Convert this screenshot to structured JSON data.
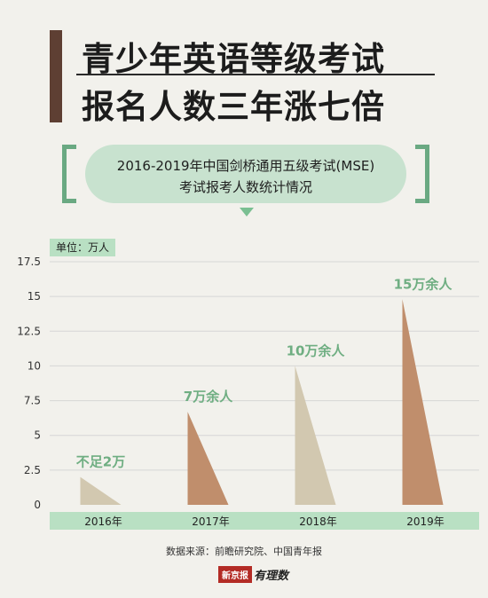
{
  "header": {
    "title_line1": "青少年英语等级考试",
    "title_line2": "报名人数三年涨七倍"
  },
  "subtitle": {
    "line1": "2016-2019年中国剑桥通用五级考试(MSE)",
    "line2": "考试报考人数统计情况"
  },
  "unit_label": "单位：万人",
  "source_text": "数据来源：前瞻研究院、中国青年报",
  "brand": {
    "name": "新京报",
    "sub": "有理数"
  },
  "colors": {
    "beige": "#d2c8b0",
    "brown": "#c08e6c",
    "green_label": "#6fae82",
    "green_band": "#b9e0c3",
    "gridline": "#d6d6d6"
  },
  "chart_data": {
    "type": "bar",
    "bar_shape": "right-triangle",
    "categories": [
      "2016年",
      "2017年",
      "2018年",
      "2019年"
    ],
    "values": [
      2,
      6.7,
      10,
      14.8
    ],
    "data_labels": [
      "不足2万",
      "7万余人",
      "10万余人",
      "15万余人"
    ],
    "bar_colors": [
      "#d2c8b0",
      "#c08e6c",
      "#d2c8b0",
      "#c08e6c"
    ],
    "y_ticks": [
      "0",
      "2.5",
      "5",
      "7.5",
      "10",
      "12.5",
      "15",
      "17.5"
    ],
    "ylim": [
      0,
      17.5
    ],
    "grid": true
  }
}
